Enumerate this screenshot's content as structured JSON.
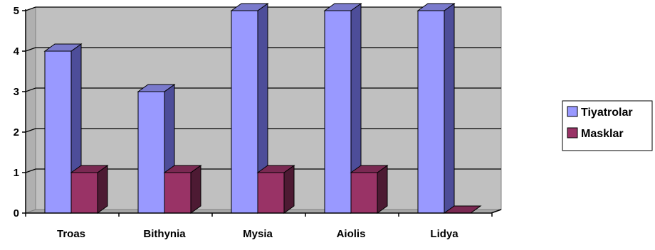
{
  "chart_data": {
    "type": "bar",
    "title": "",
    "xlabel": "",
    "ylabel": "",
    "categories": [
      "Troas",
      "Bithynia",
      "Mysia",
      "Aiolis",
      "Lidya"
    ],
    "series": [
      {
        "name": "Tiyatrolar",
        "values": [
          4,
          3,
          5,
          5,
          5
        ],
        "color": "#9999ff",
        "side_color": "#4d4d99",
        "top_color": "#7a7acc"
      },
      {
        "name": "Masklar",
        "values": [
          1,
          1,
          1,
          1,
          0
        ],
        "color": "#993366",
        "side_color": "#4d1a33",
        "top_color": "#7a2952"
      }
    ],
    "ylim": [
      0,
      5
    ],
    "yticks": [
      "0",
      "1",
      "2",
      "3",
      "4",
      "5"
    ],
    "grid": true,
    "legend_position": "right",
    "background_color": "#c0c0c0",
    "style": "3d"
  }
}
